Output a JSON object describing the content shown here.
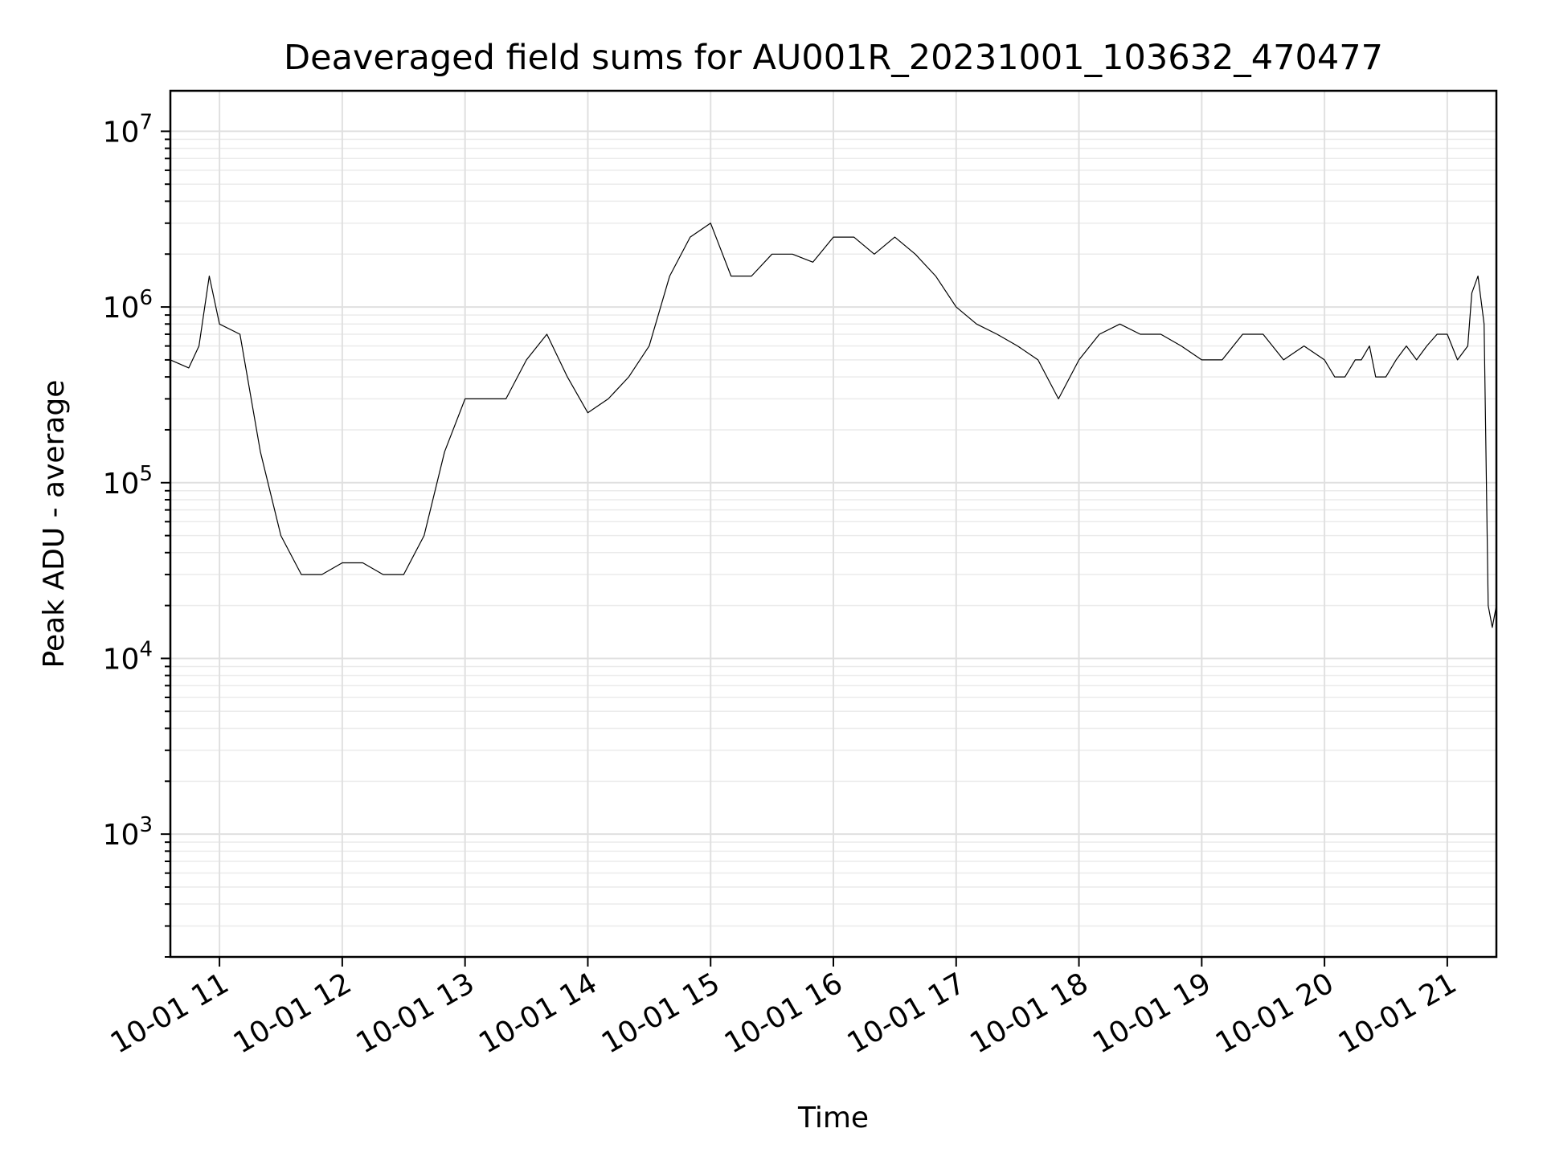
{
  "chart_data": {
    "type": "line",
    "title": "Deaveraged field sums for AU001R_20231001_103632_470477",
    "xlabel": "Time",
    "ylabel": "Peak ADU - average",
    "yscale": "log",
    "ylim": [
      200,
      17000000
    ],
    "xlim": [
      "2023-10-01 10:36",
      "2023-10-01 21:24"
    ],
    "grid": true,
    "x_ticks": [
      "10-01 11",
      "10-01 12",
      "10-01 13",
      "10-01 14",
      "10-01 15",
      "10-01 16",
      "10-01 17",
      "10-01 18",
      "10-01 19",
      "10-01 20",
      "10-01 21"
    ],
    "y_ticks": [
      {
        "base": "10",
        "exp": "3",
        "value": 1000
      },
      {
        "base": "10",
        "exp": "4",
        "value": 10000
      },
      {
        "base": "10",
        "exp": "5",
        "value": 100000
      },
      {
        "base": "10",
        "exp": "6",
        "value": 1000000
      },
      {
        "base": "10",
        "exp": "7",
        "value": 10000000
      }
    ],
    "series": [
      {
        "color": "#000000",
        "x": [
          "10:36",
          "10:45",
          "10:50",
          "10:55",
          "11:00",
          "11:10",
          "11:20",
          "11:30",
          "11:40",
          "11:50",
          "12:00",
          "12:10",
          "12:20",
          "12:30",
          "12:40",
          "12:50",
          "13:00",
          "13:10",
          "13:20",
          "13:30",
          "13:40",
          "13:50",
          "14:00",
          "14:10",
          "14:20",
          "14:30",
          "14:40",
          "14:50",
          "15:00",
          "15:10",
          "15:20",
          "15:30",
          "15:40",
          "15:50",
          "16:00",
          "16:10",
          "16:20",
          "16:30",
          "16:40",
          "16:50",
          "17:00",
          "17:10",
          "17:20",
          "17:30",
          "17:40",
          "17:50",
          "18:00",
          "18:10",
          "18:20",
          "18:30",
          "18:40",
          "18:50",
          "19:00",
          "19:10",
          "19:20",
          "19:30",
          "19:40",
          "19:50",
          "20:00",
          "20:05",
          "20:10",
          "20:15",
          "20:18",
          "20:22",
          "20:25",
          "20:30",
          "20:35",
          "20:40",
          "20:45",
          "20:50",
          "20:55",
          "21:00",
          "21:05",
          "21:10",
          "21:12",
          "21:15",
          "21:18",
          "21:20",
          "21:22",
          "21:24"
        ],
        "values": [
          500000,
          450000,
          600000,
          1500000,
          800000,
          700000,
          150000,
          50000,
          30000,
          30000,
          35000,
          35000,
          30000,
          30000,
          50000,
          150000,
          300000,
          300000,
          300000,
          500000,
          700000,
          400000,
          250000,
          300000,
          400000,
          600000,
          1500000,
          2500000,
          3000000,
          1500000,
          1500000,
          2000000,
          2000000,
          1800000,
          2500000,
          2500000,
          2000000,
          2500000,
          2000000,
          1500000,
          1000000,
          800000,
          700000,
          600000,
          500000,
          300000,
          500000,
          700000,
          800000,
          700000,
          700000,
          600000,
          500000,
          500000,
          700000,
          700000,
          500000,
          600000,
          500000,
          400000,
          400000,
          500000,
          500000,
          600000,
          400000,
          400000,
          500000,
          600000,
          500000,
          600000,
          700000,
          700000,
          500000,
          600000,
          1200000,
          1500000,
          800000,
          20000,
          15000,
          20000
        ]
      }
    ]
  }
}
